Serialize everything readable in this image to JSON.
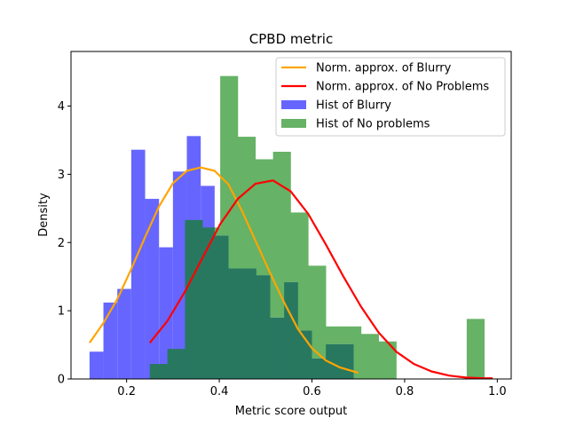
{
  "chart_data": {
    "type": "bar",
    "title": "CPBD metric",
    "xlabel": "Metric score output",
    "ylabel": "Density",
    "xlim": [
      0.08,
      1.03
    ],
    "ylim": [
      0,
      4.8
    ],
    "xticks": [
      0.2,
      0.4,
      0.6,
      0.8,
      1.0
    ],
    "xtick_labels": [
      "0.2",
      "0.4",
      "0.6",
      "0.8",
      "1.0"
    ],
    "yticks": [
      0,
      1,
      2,
      3,
      4
    ],
    "ytick_labels": [
      "0",
      "1",
      "2",
      "3",
      "4"
    ],
    "grid": false,
    "legend_position": "top-right",
    "histograms": [
      {
        "name": "Hist of Blurry",
        "color": "#6666ff",
        "bin_edges": [
          0.12,
          0.15,
          0.18,
          0.21,
          0.24,
          0.27,
          0.3,
          0.33,
          0.36,
          0.39,
          0.42,
          0.45,
          0.48,
          0.51,
          0.54,
          0.57,
          0.6,
          0.63,
          0.66,
          0.69
        ],
        "densities": [
          0.4,
          1.12,
          1.32,
          3.36,
          2.64,
          1.93,
          3.04,
          3.56,
          2.83,
          2.1,
          1.62,
          1.62,
          1.52,
          0.9,
          1.42,
          0.71,
          0.3,
          0.51,
          0.51
        ]
      },
      {
        "name": "Hist of No problems",
        "color": "#66b266",
        "bin_edges": [
          0.25,
          0.288,
          0.326,
          0.364,
          0.402,
          0.44,
          0.478,
          0.516,
          0.554,
          0.592,
          0.63,
          0.668,
          0.706,
          0.744,
          0.782,
          0.82,
          0.858,
          0.896,
          0.934,
          0.972
        ],
        "densities": [
          0.22,
          0.44,
          2.33,
          2.22,
          4.44,
          3.55,
          3.22,
          3.33,
          2.44,
          1.66,
          0.77,
          0.77,
          0.66,
          0.55,
          0,
          0,
          0,
          0,
          0.88
        ]
      }
    ],
    "overlap_color": "#287860",
    "series": [
      {
        "name": "Norm. approx. of Blurry",
        "color": "#ffa500",
        "x": [
          0.12,
          0.15,
          0.18,
          0.21,
          0.24,
          0.27,
          0.3,
          0.33,
          0.36,
          0.39,
          0.42,
          0.45,
          0.48,
          0.51,
          0.54,
          0.57,
          0.6,
          0.63,
          0.66,
          0.7
        ],
        "values": [
          0.53,
          0.82,
          1.17,
          1.61,
          2.08,
          2.53,
          2.87,
          3.05,
          3.1,
          3.05,
          2.85,
          2.45,
          2.0,
          1.55,
          1.12,
          0.73,
          0.45,
          0.27,
          0.17,
          0.09
        ]
      },
      {
        "name": "Norm. approx. of No Problems",
        "color": "#ff0000",
        "x": [
          0.25,
          0.288,
          0.326,
          0.364,
          0.402,
          0.44,
          0.478,
          0.516,
          0.554,
          0.592,
          0.63,
          0.668,
          0.706,
          0.744,
          0.782,
          0.82,
          0.858,
          0.896,
          0.934,
          0.972,
          0.99
        ],
        "values": [
          0.53,
          0.85,
          1.28,
          1.78,
          2.27,
          2.64,
          2.86,
          2.91,
          2.75,
          2.42,
          1.97,
          1.5,
          1.06,
          0.68,
          0.4,
          0.22,
          0.11,
          0.05,
          0.02,
          0.01,
          0.01
        ]
      }
    ],
    "legend_order": [
      "Norm. approx. of Blurry",
      "Norm. approx. of No Problems",
      "Hist of Blurry",
      "Hist of No problems"
    ]
  }
}
